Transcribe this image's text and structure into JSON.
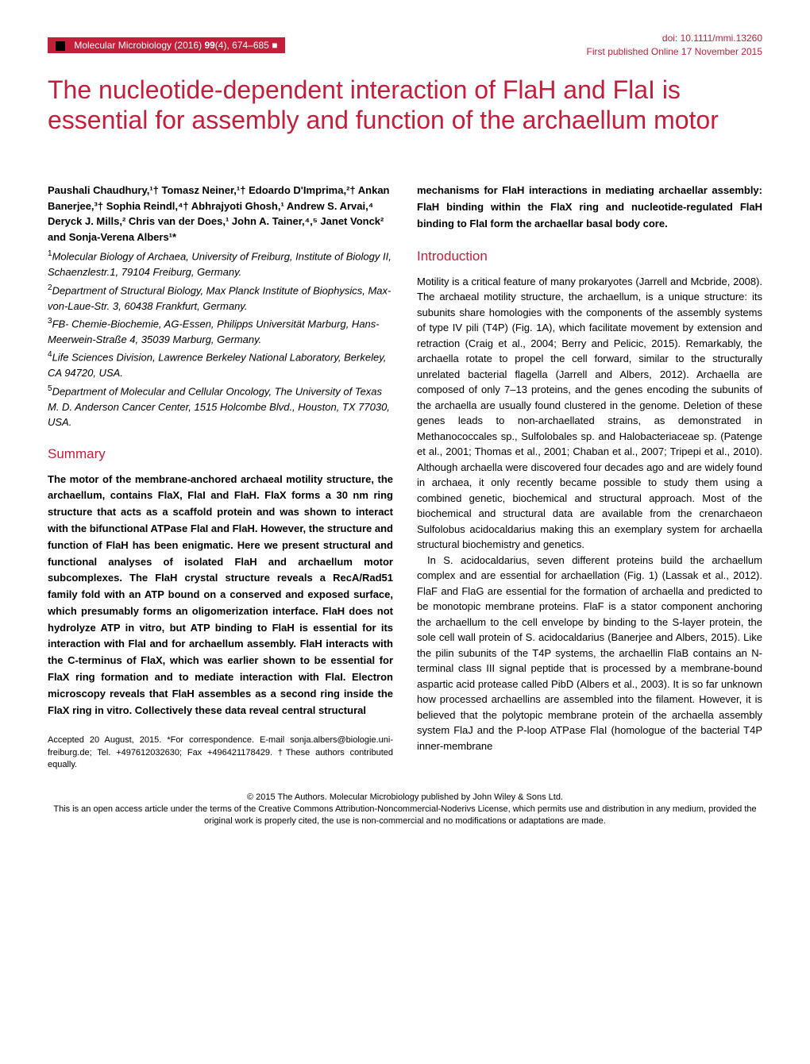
{
  "header": {
    "journal": "Molecular Microbiology",
    "year": "(2016)",
    "volume": "99",
    "issue": "(4),",
    "pages": "674–685",
    "doi": "doi: 10.1111/mmi.13260",
    "published": "First published Online 17 November 2015"
  },
  "title": "The nucleotide-dependent interaction of FlaH and FlaI is essential for assembly and function of the archaellum motor",
  "authors": "Paushali Chaudhury,¹† Tomasz Neiner,¹† Edoardo D'Imprima,²† Ankan Banerjee,³† Sophia Reindl,⁴† Abhrajyoti Ghosh,¹ Andrew S. Arvai,⁴ Deryck J. Mills,² Chris van der Does,¹ John A. Tainer,⁴,⁵ Janet Vonck² and Sonja-Verena Albers¹*",
  "affiliations": [
    {
      "num": "1",
      "text": "Molecular Biology of Archaea, University of Freiburg, Institute of Biology II, Schaenzlestr.1, 79104 Freiburg, Germany."
    },
    {
      "num": "2",
      "text": "Department of Structural Biology, Max Planck Institute of Biophysics, Max-von-Laue-Str. 3, 60438 Frankfurt, Germany."
    },
    {
      "num": "3",
      "text": "FB- Chemie-Biochemie, AG-Essen, Philipps Universität Marburg, Hans-Meerwein-Straße 4, 35039 Marburg, Germany."
    },
    {
      "num": "4",
      "text": "Life Sciences Division, Lawrence Berkeley National Laboratory, Berkeley, CA 94720, USA."
    },
    {
      "num": "5",
      "text": "Department of Molecular and Cellular Oncology, The University of Texas M. D. Anderson Cancer Center, 1515 Holcombe Blvd., Houston, TX 77030, USA."
    }
  ],
  "sections": {
    "summary_heading": "Summary",
    "summary_text": "The motor of the membrane-anchored archaeal motility structure, the archaellum, contains FlaX, FlaI and FlaH. FlaX forms a 30 nm ring structure that acts as a scaffold protein and was shown to interact with the bifunctional ATPase FlaI and FlaH. However, the structure and function of FlaH has been enigmatic. Here we present structural and functional analyses of isolated FlaH and archaellum motor subcomplexes. The FlaH crystal structure reveals a RecA/Rad51 family fold with an ATP bound on a conserved and exposed surface, which presumably forms an oligomerization interface. FlaH does not hydrolyze ATP in vitro, but ATP binding to FlaH is essential for its interaction with FlaI and for archaellum assembly. FlaH interacts with the C-terminus of FlaX, which was earlier shown to be essential for FlaX ring formation and to mediate interaction with FlaI. Electron microscopy reveals that FlaH assembles as a second ring inside the FlaX ring in vitro. Collectively these data reveal central structural",
    "intro_heading": "Introduction",
    "intro_continuation": "mechanisms for FlaH interactions in mediating archaellar assembly: FlaH binding within the FlaX ring and nucleotide-regulated FlaH binding to FlaI form the archaellar basal body core.",
    "intro_p1": "Motility is a critical feature of many prokaryotes (Jarrell and Mcbride, 2008). The archaeal motility structure, the archaellum, is a unique structure: its subunits share homologies with the components of the assembly systems of type IV pili (T4P) (Fig. 1A), which facilitate movement by extension and retraction (Craig et al., 2004; Berry and Pelicic, 2015). Remarkably, the archaella rotate to propel the cell forward, similar to the structurally unrelated bacterial flagella (Jarrell and Albers, 2012). Archaella are composed of only 7–13 proteins, and the genes encoding the subunits of the archaella are usually found clustered in the genome. Deletion of these genes leads to non-archaellated strains, as demonstrated in Methanococcales sp., Sulfolobales sp. and Halobacteriaceae sp. (Patenge et al., 2001; Thomas et al., 2001; Chaban et al., 2007; Tripepi et al., 2010). Although archaella were discovered four decades ago and are widely found in archaea, it only recently became possible to study them using a combined genetic, biochemical and structural approach. Most of the biochemical and structural data are available from the crenarchaeon Sulfolobus acidocaldarius making this an exemplary system for archaella structural biochemistry and genetics.",
    "intro_p2": "In S. acidocaldarius, seven different proteins build the archaellum complex and are essential for archaellation (Fig. 1) (Lassak et al., 2012). FlaF and FlaG are essential for the formation of archaella and predicted to be monotopic membrane proteins. FlaF is a stator component anchoring the archaellum to the cell envelope by binding to the S-layer protein, the sole cell wall protein of S. acidocaldarius (Banerjee and Albers, 2015). Like the pilin subunits of the T4P systems, the archaellin FlaB contains an N-terminal class III signal peptide that is processed by a membrane-bound aspartic acid protease called PibD (Albers et al., 2003). It is so far unknown how processed archaellins are assembled into the filament. However, it is believed that the polytopic membrane protein of the archaella assembly system FlaJ and the P-loop ATPase FlaI (homologue of the bacterial T4P inner-membrane"
  },
  "footer": {
    "accepted": "Accepted 20 August, 2015. *For correspondence. E-mail sonja.albers@biologie.uni-freiburg.de; Tel. +497612032630; Fax +496421178429. †These authors contributed equally.",
    "copyright": "© 2015 The Authors. Molecular Microbiology published by John Wiley & Sons Ltd.",
    "license": "This is an open access article under the terms of the Creative Commons Attribution-Noncommercial-Noderivs License, which permits use and distribution in any medium, provided the original work is properly cited, the use is non-commercial and no modifications or adaptations are made."
  },
  "colors": {
    "accent": "#c41e3a",
    "text": "#000000",
    "background": "#ffffff"
  }
}
